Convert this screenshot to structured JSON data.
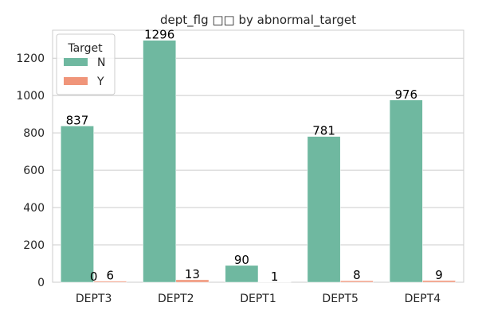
{
  "chart_data": {
    "type": "bar",
    "title": "dept_flg □□ by abnormal_target",
    "xlabel": "",
    "ylabel": "",
    "categories": [
      "DEPT3",
      "DEPT2",
      "DEPT1",
      "DEPT5",
      "DEPT4"
    ],
    "series": [
      {
        "name": "N",
        "values": [
          837,
          1296,
          90,
          781,
          976
        ],
        "labels": [
          "837",
          "1296",
          "90",
          "781",
          "976"
        ],
        "color": "#6fb8a0"
      },
      {
        "name": "Y",
        "values": [
          6,
          13,
          1,
          8,
          9
        ],
        "labels": [
          "6",
          "13",
          "1",
          "8",
          "9"
        ],
        "color": "#f0957a"
      }
    ],
    "extra_labels": [
      {
        "category": "DEPT3",
        "text": "0"
      }
    ],
    "ylim": [
      0,
      1350
    ],
    "yticks": [
      0,
      200,
      400,
      600,
      800,
      1000,
      1200
    ],
    "grid": true,
    "legend": {
      "title": "Target",
      "placement": "top-left"
    }
  }
}
